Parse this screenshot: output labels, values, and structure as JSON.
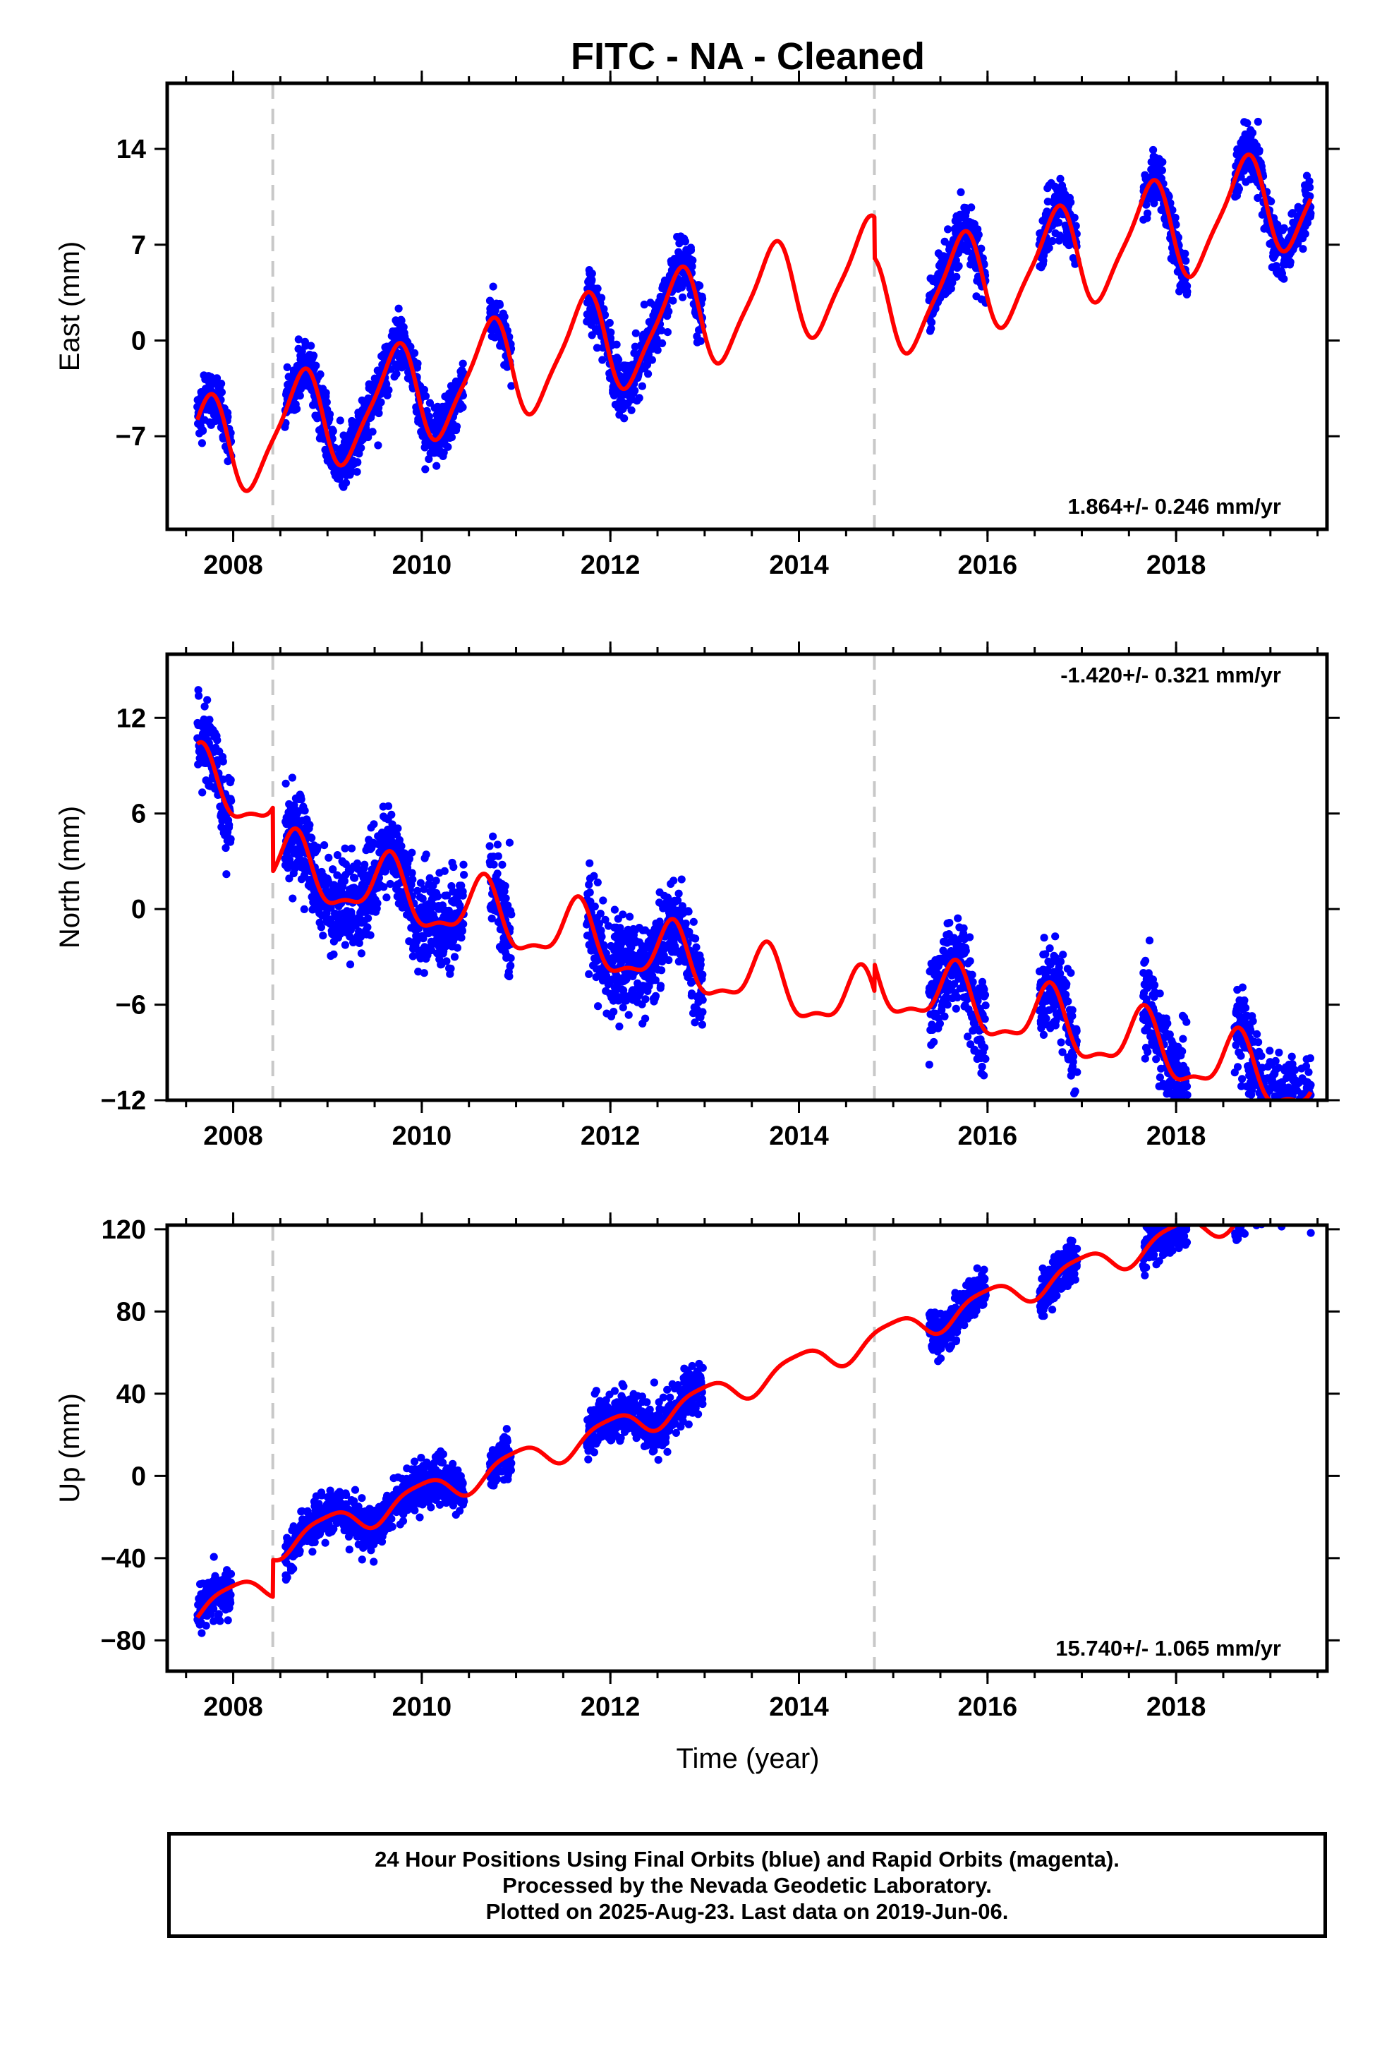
{
  "title": "FITC  - NA - Cleaned",
  "xlabel": "Time (year)",
  "colors": {
    "points": "#0000ff",
    "model": "#ff0000",
    "breaks": "#c8c8c8"
  },
  "footer": {
    "line1": "24 Hour Positions Using Final Orbits (blue) and Rapid Orbits (magenta).",
    "line2": "Processed by the Nevada Geodetic Laboratory.",
    "line3": "Plotted on 2025-Aug-23. Last data on 2019-Jun-06."
  },
  "chart_data": [
    {
      "type": "scatter",
      "component": "east",
      "ylabel": "East (mm)",
      "xlim": [
        2007.3,
        2019.6
      ],
      "ylim": [
        -13.8,
        18.8
      ],
      "yticks": [
        -7,
        0,
        7,
        14
      ],
      "xticks": [
        2008,
        2010,
        2012,
        2014,
        2016,
        2018
      ],
      "break_years": [
        2008.42,
        2014.8
      ],
      "rate_label": "1.864+/- 0.246 mm/yr",
      "rate_position": "bottom-right",
      "model": {
        "trend": 1.864,
        "amp_annual": 3.6,
        "phase_annual": 0.46,
        "amp_semiannual": 0.8,
        "phase_semiannual": 0.2,
        "offsets": [
          {
            "year": 2008.42,
            "offset": 0.0
          },
          {
            "year": 2014.8,
            "offset": -3.0
          }
        ],
        "ref_year": 2013.5,
        "ref_value": 2.8
      },
      "data_segments": [
        [
          2007.62,
          2007.98
        ],
        [
          2008.55,
          2010.45
        ],
        [
          2010.72,
          2010.95
        ],
        [
          2011.75,
          2012.98
        ],
        [
          2015.38,
          2015.98
        ],
        [
          2016.55,
          2016.95
        ],
        [
          2017.65,
          2018.12
        ],
        [
          2018.62,
          2019.43
        ]
      ],
      "scatter_sd": 1.0
    },
    {
      "type": "scatter",
      "component": "north",
      "ylabel": "North (mm)",
      "xlim": [
        2007.3,
        2019.6
      ],
      "ylim": [
        -12.0,
        16.0
      ],
      "yticks": [
        -12,
        -6,
        0,
        6,
        12
      ],
      "xticks": [
        2008,
        2010,
        2012,
        2014,
        2016,
        2018
      ],
      "break_years": [
        2008.42,
        2014.8
      ],
      "rate_label": "-1.420+/- 0.321 mm/yr",
      "rate_position": "top-right",
      "model": {
        "trend": -1.42,
        "amp_annual": 1.9,
        "phase_annual": 0.4,
        "amp_semiannual": 0.7,
        "phase_semiannual": 0.05,
        "offsets": [
          {
            "year": 2008.42,
            "offset": -4.0
          },
          {
            "year": 2014.8,
            "offset": 1.7
          }
        ],
        "ref_year": 2013.5,
        "ref_value": -0.4
      },
      "data_segments": [
        [
          2007.62,
          2007.98
        ],
        [
          2008.55,
          2010.45
        ],
        [
          2010.72,
          2010.95
        ],
        [
          2011.75,
          2012.98
        ],
        [
          2015.38,
          2015.98
        ],
        [
          2016.55,
          2016.95
        ],
        [
          2017.65,
          2018.12
        ],
        [
          2018.62,
          2019.43
        ]
      ],
      "scatter_sd": 1.4
    },
    {
      "type": "scatter",
      "component": "up",
      "ylabel": "Up (mm)",
      "xlim": [
        2007.3,
        2019.6
      ],
      "ylim": [
        -95.0,
        122.0
      ],
      "yticks": [
        -80,
        -40,
        0,
        40,
        80,
        120
      ],
      "xticks": [
        2008,
        2010,
        2012,
        2014,
        2016,
        2018
      ],
      "break_years": [
        2008.42,
        2014.8
      ],
      "rate_label": "15.740+/- 1.065 mm/yr",
      "rate_position": "bottom-right",
      "model": {
        "trend": 15.74,
        "amp_annual": 6.5,
        "phase_annual": 0.75,
        "amp_semiannual": 1.5,
        "phase_semiannual": 0.1,
        "offsets": [
          {
            "year": 2008.42,
            "offset": 18.0
          },
          {
            "year": 2014.8,
            "offset": 0.0
          }
        ],
        "ref_year": 2013.5,
        "ref_value": 28.0
      },
      "data_segments": [
        [
          2007.62,
          2007.98
        ],
        [
          2008.55,
          2010.45
        ],
        [
          2010.72,
          2010.95
        ],
        [
          2011.75,
          2012.98
        ],
        [
          2015.38,
          2015.98
        ],
        [
          2016.55,
          2016.95
        ],
        [
          2017.65,
          2018.12
        ],
        [
          2018.62,
          2019.43
        ]
      ],
      "scatter_sd": 5.5
    }
  ]
}
